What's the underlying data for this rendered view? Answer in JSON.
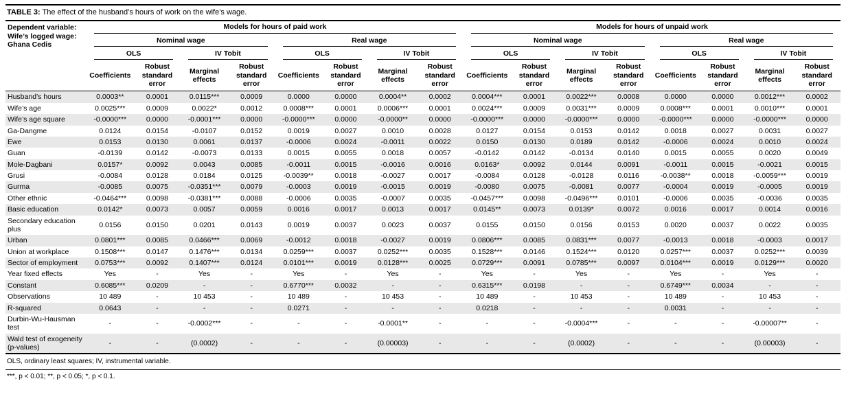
{
  "title": {
    "label": "TABLE 3:",
    "text": "The effect of the husband’s hours of work on the wife’s wage."
  },
  "header": {
    "dependent_variable": [
      "Dependent variable:",
      "Wife’s logged wage:",
      "Ghana Cedis"
    ],
    "groups": [
      "Models for hours of paid work",
      "Models for hours of unpaid work"
    ],
    "wage_types": [
      "Nominal wage",
      "Real wage"
    ],
    "models": [
      "OLS",
      "IV Tobit"
    ],
    "ols_cols": [
      "Coefficients",
      "Robust standard error"
    ],
    "iv_cols": [
      "Marginal effects",
      "Robust standard error"
    ]
  },
  "rows": [
    {
      "label": "Husband’s hours",
      "values": [
        "0.0003**",
        "0.0001",
        "0.0115***",
        "0.0009",
        "0.0000",
        "0.0000",
        "0.0004**",
        "0.0002",
        "0.0004***",
        "0.0001",
        "0.0022***",
        "0.0008",
        "0.0000",
        "0.0000",
        "0.0012***",
        "0.0002"
      ]
    },
    {
      "label": "Wife’s age",
      "values": [
        "0.0025***",
        "0.0009",
        "0.0022*",
        "0.0012",
        "0.0008***",
        "0.0001",
        "0.0006***",
        "0.0001",
        "0.0024***",
        "0.0009",
        "0.0031***",
        "0.0009",
        "0.0008***",
        "0.0001",
        "0.0010***",
        "0.0001"
      ]
    },
    {
      "label": "Wife’s age square",
      "values": [
        "-0.0000***",
        "0.0000",
        "-0.0001***",
        "0.0000",
        "-0.0000***",
        "0.0000",
        "-0.0000**",
        "0.0000",
        "-0.0000***",
        "0.0000",
        "-0.0000***",
        "0.0000",
        "-0.0000***",
        "0.0000",
        "-0.0000***",
        "0.0000"
      ]
    },
    {
      "label": "Ga-Dangme",
      "values": [
        "0.0124",
        "0.0154",
        "-0.0107",
        "0.0152",
        "0.0019",
        "0.0027",
        "0.0010",
        "0.0028",
        "0.0127",
        "0.0154",
        "0.0153",
        "0.0142",
        "0.0018",
        "0.0027",
        "0.0031",
        "0.0027"
      ]
    },
    {
      "label": "Ewe",
      "values": [
        "0.0153",
        "0.0130",
        "0.0061",
        "0.0137",
        "-0.0006",
        "0.0024",
        "-0.0011",
        "0.0022",
        "0.0150",
        "0.0130",
        "0.0189",
        "0.0142",
        "-0.0006",
        "0.0024",
        "0.0010",
        "0.0024"
      ]
    },
    {
      "label": "Guan",
      "values": [
        "-0.0139",
        "0.0142",
        "-0.0073",
        "0.0133",
        "0.0015",
        "0.0055",
        "0.0018",
        "0.0057",
        "-0.0142",
        "0.0142",
        "-0.0134",
        "0.0140",
        "0.0015",
        "0.0055",
        "0.0020",
        "0.0049"
      ]
    },
    {
      "label": "Mole-Dagbani",
      "values": [
        "0.0157*",
        "0.0092",
        "0.0043",
        "0.0085",
        "-0.0011",
        "0.0015",
        "-0.0016",
        "0.0016",
        "0.0163*",
        "0.0092",
        "0.0144",
        "0.0091",
        "-0.0011",
        "0.0015",
        "-0.0021",
        "0.0015"
      ]
    },
    {
      "label": "Grusi",
      "values": [
        "-0.0084",
        "0.0128",
        "0.0184",
        "0.0125",
        "-0.0039**",
        "0.0018",
        "-0.0027",
        "0.0017",
        "-0.0084",
        "0.0128",
        "-0.0128",
        "0.0116",
        "-0.0038**",
        "0.0018",
        "-0.0059***",
        "0.0019"
      ]
    },
    {
      "label": "Gurma",
      "values": [
        "-0.0085",
        "0.0075",
        "-0.0351***",
        "0.0079",
        "-0.0003",
        "0.0019",
        "-0.0015",
        "0.0019",
        "-0.0080",
        "0.0075",
        "-0.0081",
        "0.0077",
        "-0.0004",
        "0.0019",
        "-0.0005",
        "0.0019"
      ]
    },
    {
      "label": "Other ethnic",
      "values": [
        "-0.0464***",
        "0.0098",
        "-0.0381***",
        "0.0088",
        "-0.0006",
        "0.0035",
        "-0.0007",
        "0.0035",
        "-0.0457***",
        "0.0098",
        "-0.0496***",
        "0.0101",
        "-0.0006",
        "0.0035",
        "-0.0036",
        "0.0035"
      ]
    },
    {
      "label": "Basic education",
      "values": [
        "0.0142*",
        "0.0073",
        "0.0057",
        "0.0059",
        "0.0016",
        "0.0017",
        "0.0013",
        "0.0017",
        "0.0145**",
        "0.0073",
        "0.0139*",
        "0.0072",
        "0.0016",
        "0.0017",
        "0.0014",
        "0.0016"
      ]
    },
    {
      "label": "Secondary education plus",
      "values": [
        "0.0156",
        "0.0150",
        "0.0201",
        "0.0143",
        "0.0019",
        "0.0037",
        "0.0023",
        "0.0037",
        "0.0155",
        "0.0150",
        "0.0156",
        "0.0153",
        "0.0020",
        "0.0037",
        "0.0022",
        "0.0035"
      ]
    },
    {
      "label": "Urban",
      "values": [
        "0.0801***",
        "0.0085",
        "0.0466***",
        "0.0069",
        "-0.0012",
        "0.0018",
        "-0.0027",
        "0.0019",
        "0.0806***",
        "0.0085",
        "0.0831***",
        "0.0077",
        "-0.0013",
        "0.0018",
        "-0.0003",
        "0.0017"
      ]
    },
    {
      "label": "Union at workplace",
      "values": [
        "0.1508***",
        "0.0147",
        "0.1476***",
        "0.0134",
        "0.0259***",
        "0.0037",
        "0.0252***",
        "0.0035",
        "0.1528***",
        "0.0146",
        "0.1524***",
        "0.0120",
        "0.0257***",
        "0.0037",
        "0.0252***",
        "0.0039"
      ]
    },
    {
      "label": "Sector of employment",
      "values": [
        "0.0753***",
        "0.0092",
        "0.1407***",
        "0.0124",
        "0.0101***",
        "0.0019",
        "0.0128***",
        "0.0025",
        "0.0729***",
        "0.0091",
        "0.0785***",
        "0.0097",
        "0.0104***",
        "0.0019",
        "0.0129***",
        "0.0020"
      ]
    },
    {
      "label": "Year fixed effects",
      "values": [
        "Yes",
        "-",
        "Yes",
        "-",
        "Yes",
        "-",
        "Yes",
        "-",
        "Yes",
        "-",
        "Yes",
        "-",
        "Yes",
        "-",
        "Yes",
        "-"
      ]
    },
    {
      "label": "Constant",
      "values": [
        "0.6085***",
        "0.0209",
        "-",
        "-",
        "0.6770***",
        "0.0032",
        "-",
        "-",
        "0.6315***",
        "0.0198",
        "-",
        "-",
        "0.6749***",
        "0.0034",
        "-",
        "-"
      ]
    },
    {
      "label": "Observations",
      "values": [
        "10 489",
        "-",
        "10 453",
        "-",
        "10 489",
        "-",
        "10 453",
        "-",
        "10 489",
        "-",
        "10 453",
        "-",
        "10 489",
        "-",
        "10 453",
        "-"
      ]
    },
    {
      "label": "R-squared",
      "values": [
        "0.0643",
        "-",
        "-",
        "-",
        "0.0271",
        "-",
        "-",
        "-",
        "0.0218",
        "-",
        "-",
        "-",
        "0.0031",
        "-",
        "-",
        "-"
      ]
    },
    {
      "label": "Durbin-Wu-Hausman test",
      "values": [
        "-",
        "-",
        "-0.0002***",
        "-",
        "-",
        "-",
        "-0.0001**",
        "-",
        "-",
        "-",
        "-0.0004***",
        "-",
        "-",
        "-",
        "-0.00007**",
        "-"
      ]
    },
    {
      "label": "Wald test of exogeneity (p-values)",
      "values": [
        "-",
        "-",
        "(0.0002)",
        "-",
        "-",
        "-",
        "(0.00003)",
        "-",
        "-",
        "-",
        "(0.0002)",
        "-",
        "-",
        "-",
        "(0.00003)",
        "-"
      ]
    }
  ],
  "footnotes": [
    "OLS, ordinary least squares; IV, instrumental variable.",
    "***, p < 0.01; **, p < 0.05; *, p < 0.1."
  ]
}
